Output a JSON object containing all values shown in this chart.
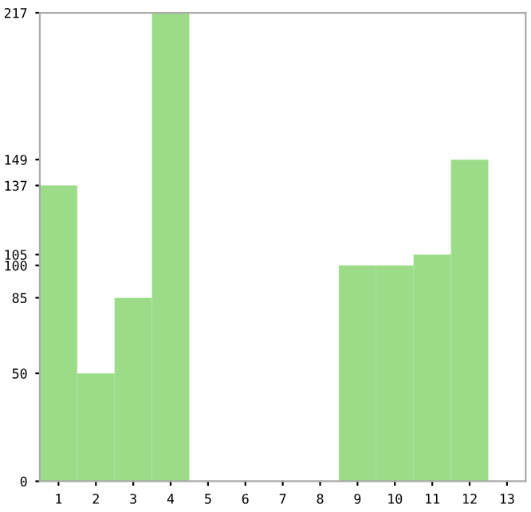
{
  "chart_data": {
    "type": "bar",
    "categories": [
      "1",
      "2",
      "3",
      "4",
      "5",
      "6",
      "7",
      "8",
      "9",
      "10",
      "11",
      "12",
      "13"
    ],
    "values": [
      137,
      50,
      85,
      217,
      0,
      0,
      0,
      0,
      100,
      100,
      105,
      149,
      0
    ],
    "color": "#9cdc88",
    "ylim": [
      0,
      217
    ],
    "yticks": [
      0,
      50,
      85,
      100,
      105,
      137,
      149,
      217
    ],
    "grid": false
  }
}
